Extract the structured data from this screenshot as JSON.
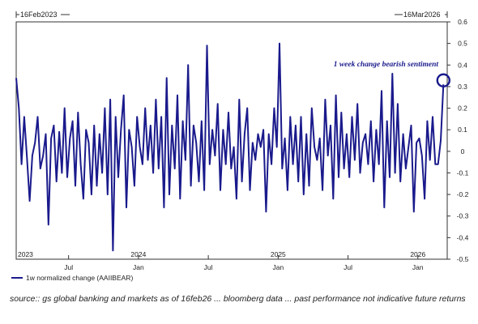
{
  "colors": {
    "line": "#1a1a8c",
    "axis": "#333333",
    "annotation": "#1a1a8c"
  },
  "header": {
    "start_date": "16Feb2023",
    "end_date": "16Mar2026"
  },
  "legend": {
    "label": "1w normalized change (AAIIBEAR)"
  },
  "annotation": {
    "text": "1 week change bearish sentiment"
  },
  "source": {
    "text": "source:: gs global banking and markets as of 16feb26 ... bloomberg data ... past performance not indicative future returns"
  },
  "chart_data": {
    "type": "line",
    "ylim": [
      -0.5,
      0.6
    ],
    "yticks": [
      0.6,
      0.5,
      0.4,
      0.3,
      0.2,
      0.1,
      0,
      -0.1,
      -0.2,
      -0.3,
      -0.4,
      -0.5
    ],
    "ytick_labels": [
      "0.6",
      "0.5",
      "0.4",
      "0.3",
      "0.2",
      "0.1",
      "0",
      "-0.1",
      "-0.2",
      "-0.3",
      "-0.4",
      "-0.5"
    ],
    "xlim": [
      2023.125,
      2026.21
    ],
    "month_ticks": [
      {
        "label": "Jul",
        "x": 2023.5
      },
      {
        "label": "Jan",
        "x": 2024.0
      },
      {
        "label": "Jul",
        "x": 2024.5
      },
      {
        "label": "Jan",
        "x": 2025.0
      },
      {
        "label": "Jul",
        "x": 2025.5
      },
      {
        "label": "Jan",
        "x": 2026.0
      }
    ],
    "year_labels": [
      {
        "label": "2023",
        "x": 2023.13
      },
      {
        "label": "2024",
        "x": 2024.0
      },
      {
        "label": "2025",
        "x": 2025.0
      },
      {
        "label": "2026",
        "x": 2026.0
      }
    ],
    "series": [
      {
        "start": 2023.125,
        "step": 0.019231,
        "values": [
          0.34,
          0.2,
          -0.06,
          0.16,
          -0.03,
          -0.23,
          -0.02,
          0.04,
          0.16,
          -0.08,
          -0.02,
          0.08,
          -0.34,
          0.06,
          0.12,
          -0.14,
          0.09,
          -0.1,
          0.2,
          -0.12,
          0.06,
          0.14,
          -0.16,
          0.18,
          -0.06,
          -0.22,
          0.1,
          0.04,
          -0.2,
          0.12,
          -0.16,
          0.08,
          -0.1,
          0.2,
          -0.2,
          0.24,
          -0.46,
          0.16,
          -0.12,
          0.1,
          0.26,
          -0.26,
          0.1,
          0.02,
          -0.16,
          0.16,
          0.02,
          -0.06,
          0.2,
          -0.04,
          0.12,
          -0.1,
          0.24,
          -0.08,
          0.16,
          -0.26,
          0.34,
          -0.2,
          0.12,
          -0.08,
          0.26,
          -0.22,
          0.14,
          -0.04,
          0.4,
          -0.16,
          0.12,
          0.04,
          -0.14,
          0.14,
          -0.18,
          0.49,
          -0.06,
          0.1,
          -0.02,
          0.22,
          -0.18,
          0.1,
          -0.06,
          0.18,
          -0.08,
          0.02,
          -0.22,
          0.24,
          -0.14,
          0.08,
          0.2,
          -0.18,
          0.04,
          -0.04,
          0.08,
          0.02,
          0.1,
          -0.28,
          0.08,
          -0.06,
          0.2,
          0.02,
          0.5,
          -0.08,
          0.06,
          -0.18,
          0.16,
          -0.06,
          0.12,
          -0.14,
          0.16,
          -0.2,
          0.08,
          -0.16,
          0.2,
          0.02,
          -0.04,
          0.06,
          -0.18,
          0.24,
          -0.02,
          0.12,
          -0.22,
          0.26,
          -0.12,
          0.18,
          -0.08,
          0.08,
          -0.12,
          0.16,
          -0.04,
          0.22,
          -0.1,
          0.04,
          0.08,
          -0.06,
          0.14,
          -0.14,
          0.1,
          -0.06,
          0.28,
          -0.26,
          0.14,
          -0.12,
          0.36,
          -0.1,
          0.22,
          -0.14,
          0.08,
          -0.08,
          0.02,
          0.12,
          -0.28,
          0.04,
          0.06,
          -0.02,
          -0.22,
          0.14,
          -0.04,
          0.16,
          -0.06,
          -0.06,
          0.05,
          0.31
        ]
      }
    ]
  }
}
